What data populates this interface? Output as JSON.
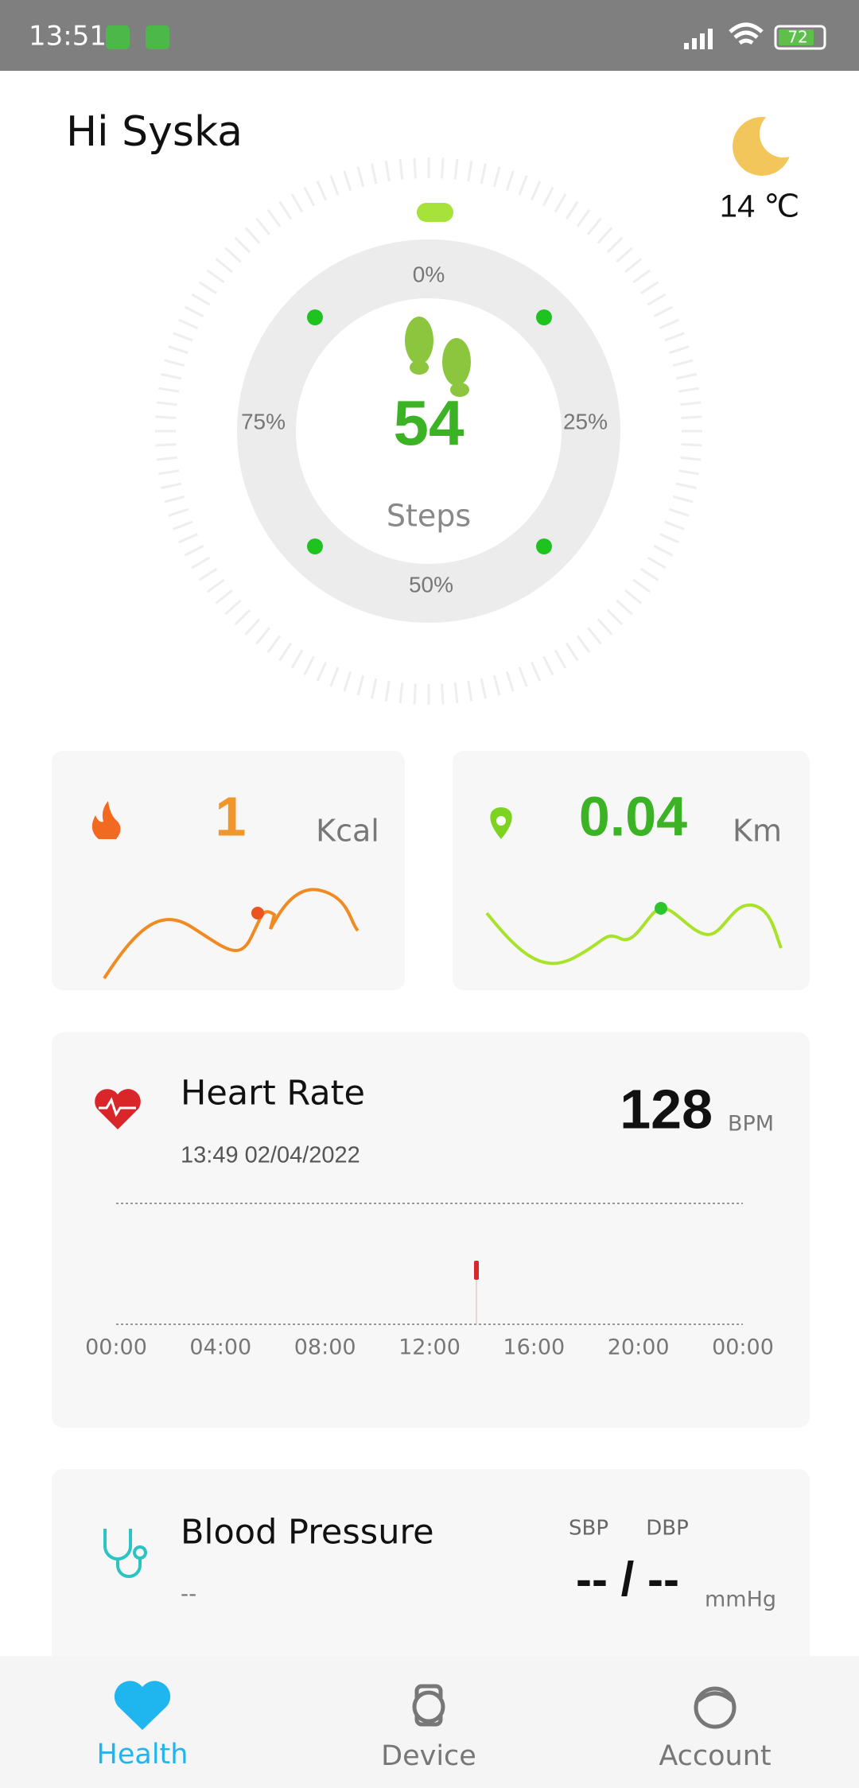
{
  "status_bar": {
    "time": "13:51",
    "battery": "72"
  },
  "header": {
    "greeting": "Hi Syska",
    "temperature": "14 ℃"
  },
  "steps": {
    "value": 54,
    "label": "Steps",
    "progress_labels": [
      "0%",
      "25%",
      "50%",
      "75%"
    ]
  },
  "calories": {
    "value": 1,
    "unit": "Kcal"
  },
  "distance": {
    "value": 0.04,
    "unit": "Km"
  },
  "heart_rate": {
    "title": "Heart Rate",
    "timestamp": "13:49 02/04/2022",
    "value": 128,
    "unit": "BPM",
    "time_labels": [
      "00:00",
      "04:00",
      "08:00",
      "12:00",
      "16:00",
      "20:00",
      "00:00"
    ]
  },
  "blood_pressure": {
    "title": "Blood Pressure",
    "subtitle": "--",
    "sbp_label": "SBP",
    "dbp_label": "DBP",
    "value": "-- / --",
    "unit": "mmHg"
  },
  "nav": {
    "items": [
      "Health",
      "Device",
      "Account"
    ]
  }
}
